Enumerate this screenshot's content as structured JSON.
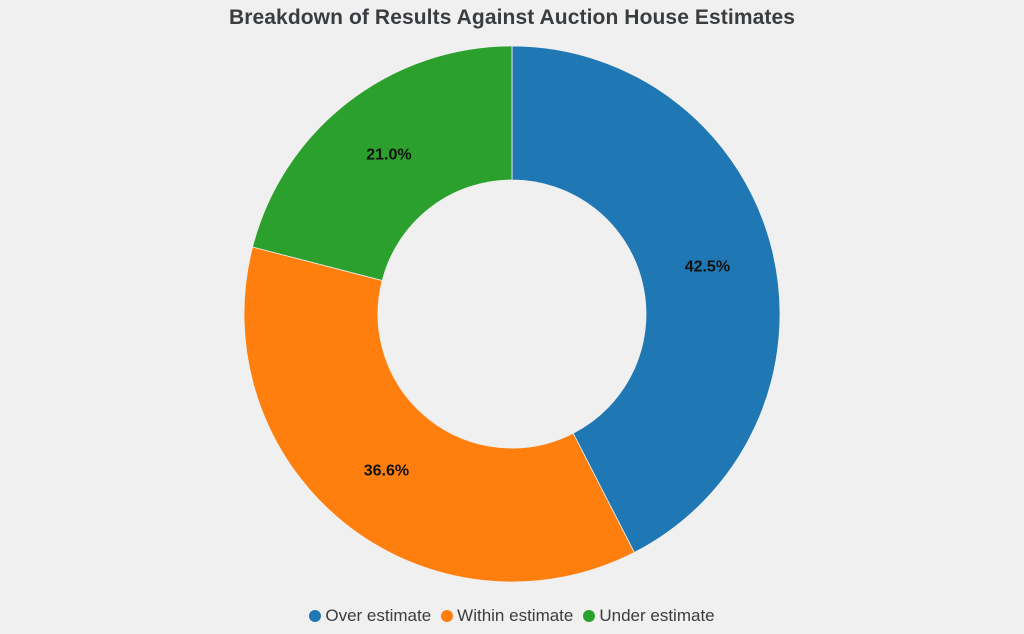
{
  "chart_data": {
    "type": "pie",
    "title": "Breakdown of Results Against Auction House Estimates",
    "hole": 0.5,
    "categories": [
      "Over estimate",
      "Within estimate",
      "Under estimate"
    ],
    "values": [
      42.5,
      36.6,
      21.0
    ],
    "labels": [
      "42.5%",
      "36.6%",
      "21.0%"
    ],
    "colors": [
      "#1f77b4",
      "#ff7f0e",
      "#2ca02c"
    ],
    "start": "12 o'clock",
    "direction": "clockwise",
    "legend_position": "bottom-center"
  },
  "legend": {
    "items": [
      {
        "label": "Over estimate",
        "color": "#1f77b4"
      },
      {
        "label": "Within estimate",
        "color": "#ff7f0e"
      },
      {
        "label": "Under estimate",
        "color": "#2ca02c"
      }
    ]
  }
}
